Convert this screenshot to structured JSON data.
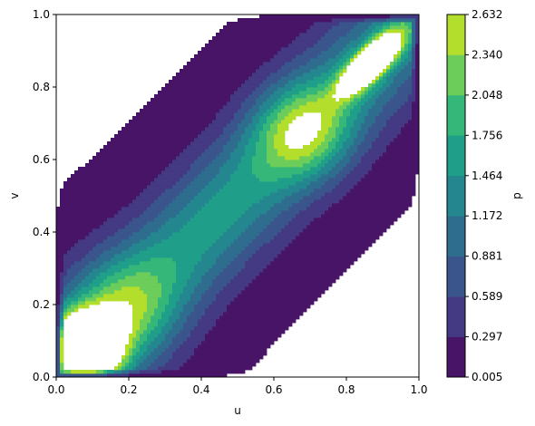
{
  "chart_data": {
    "type": "heatmap",
    "subtype": "filled-contour",
    "title": "",
    "xlabel": "u",
    "ylabel": "v",
    "colorbar_label": "p",
    "xlim": [
      0.0,
      1.0
    ],
    "ylim": [
      0.0,
      1.0
    ],
    "x_ticks": [
      "0.0",
      "0.2",
      "0.4",
      "0.6",
      "0.8",
      "1.0"
    ],
    "y_ticks": [
      "0.0",
      "0.2",
      "0.4",
      "0.6",
      "0.8",
      "1.0"
    ],
    "levels": [
      0.005,
      0.297,
      0.589,
      0.881,
      1.172,
      1.464,
      1.756,
      2.048,
      2.34,
      2.632
    ],
    "level_labels": [
      "0.005",
      "0.297",
      "0.589",
      "0.881",
      "1.172",
      "1.464",
      "1.756",
      "2.048",
      "2.340",
      "2.632"
    ],
    "level_colors": [
      "#481467",
      "#443983",
      "#3a548c",
      "#2e6d8e",
      "#24868e",
      "#1f9e89",
      "#35b779",
      "#6ccd5a",
      "#b4de2c",
      "#fde725"
    ],
    "field": "copula density p(u,v), max above 2.632 near (0.08,0.08) and (0.88,0.88)",
    "colormap": "viridis",
    "grid": false
  }
}
